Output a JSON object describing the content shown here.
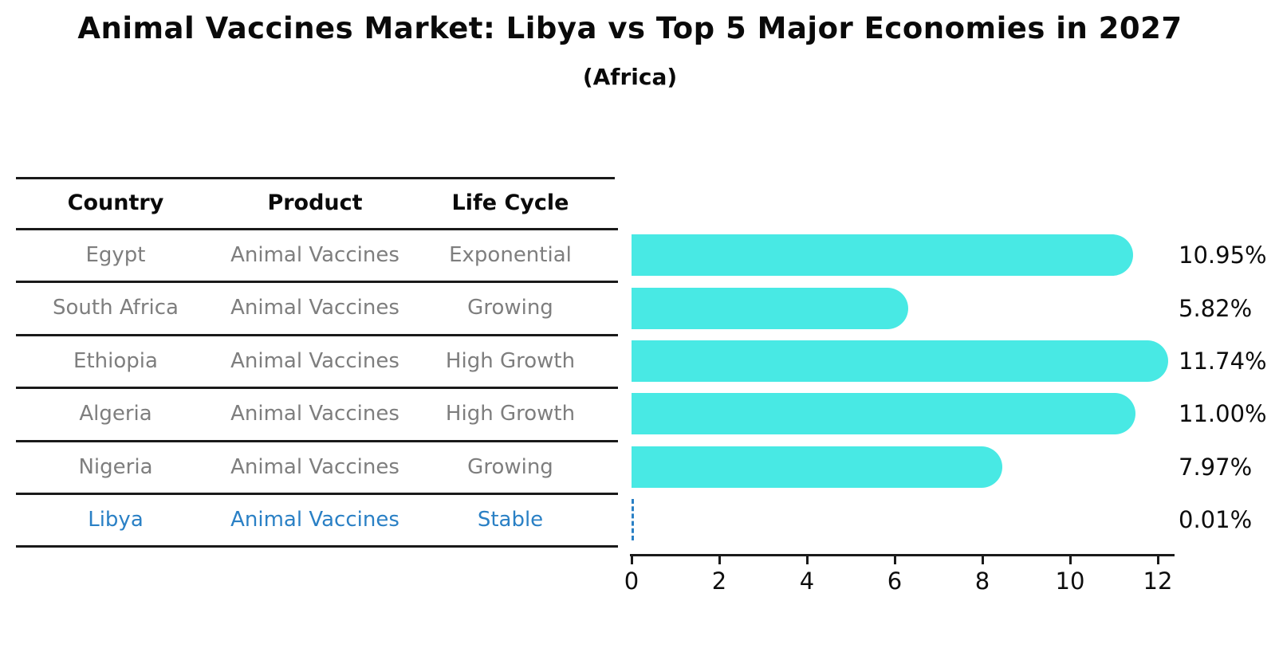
{
  "title": "Animal Vaccines Market: Libya vs Top 5 Major Economies in 2027",
  "subtitle": "(Africa)",
  "colors": {
    "bar": "#48E9E4",
    "highlight_blue": "#2A80C5",
    "row_text_gray": "#7E7E7E",
    "ink": "#0A0A0A",
    "rule": "#1A1A1A"
  },
  "table": {
    "headers": {
      "country": "Country",
      "product": "Product",
      "life_cycle": "Life Cycle"
    },
    "rows": [
      {
        "country": "Egypt",
        "product": "Animal Vaccines",
        "life_cycle": "Exponential",
        "highlight": false
      },
      {
        "country": "South Africa",
        "product": "Animal Vaccines",
        "life_cycle": "Growing",
        "highlight": false
      },
      {
        "country": "Ethiopia",
        "product": "Animal Vaccines",
        "life_cycle": "High Growth",
        "highlight": false
      },
      {
        "country": "Algeria",
        "product": "Animal Vaccines",
        "life_cycle": "High Growth",
        "highlight": false
      },
      {
        "country": "Nigeria",
        "product": "Animal Vaccines",
        "life_cycle": "Growing",
        "highlight": false
      },
      {
        "country": "Libya",
        "product": "Animal Vaccines",
        "life_cycle": "Stable",
        "highlight": true
      }
    ]
  },
  "chart_data": {
    "type": "bar",
    "orientation": "horizontal",
    "title": "Animal Vaccines Market: Libya vs Top 5 Major Economies in 2027",
    "subtitle": "(Africa)",
    "categories": [
      "Egypt",
      "South Africa",
      "Ethiopia",
      "Algeria",
      "Nigeria",
      "Libya"
    ],
    "values": [
      10.95,
      5.82,
      11.74,
      11.0,
      7.97,
      0.01
    ],
    "value_labels": [
      "10.95%",
      "5.82%",
      "11.74%",
      "11.00%",
      "7.97%",
      "0.01%"
    ],
    "xlabel": "",
    "ylabel": "",
    "xlim": [
      0,
      12.36
    ],
    "xticks": [
      0,
      2,
      4,
      6,
      8,
      10,
      12
    ],
    "grid": false,
    "legend": false,
    "bar_color": "#48E9E4",
    "highlight_index": 5,
    "highlight_rendering": "blue dashed line at zero"
  }
}
